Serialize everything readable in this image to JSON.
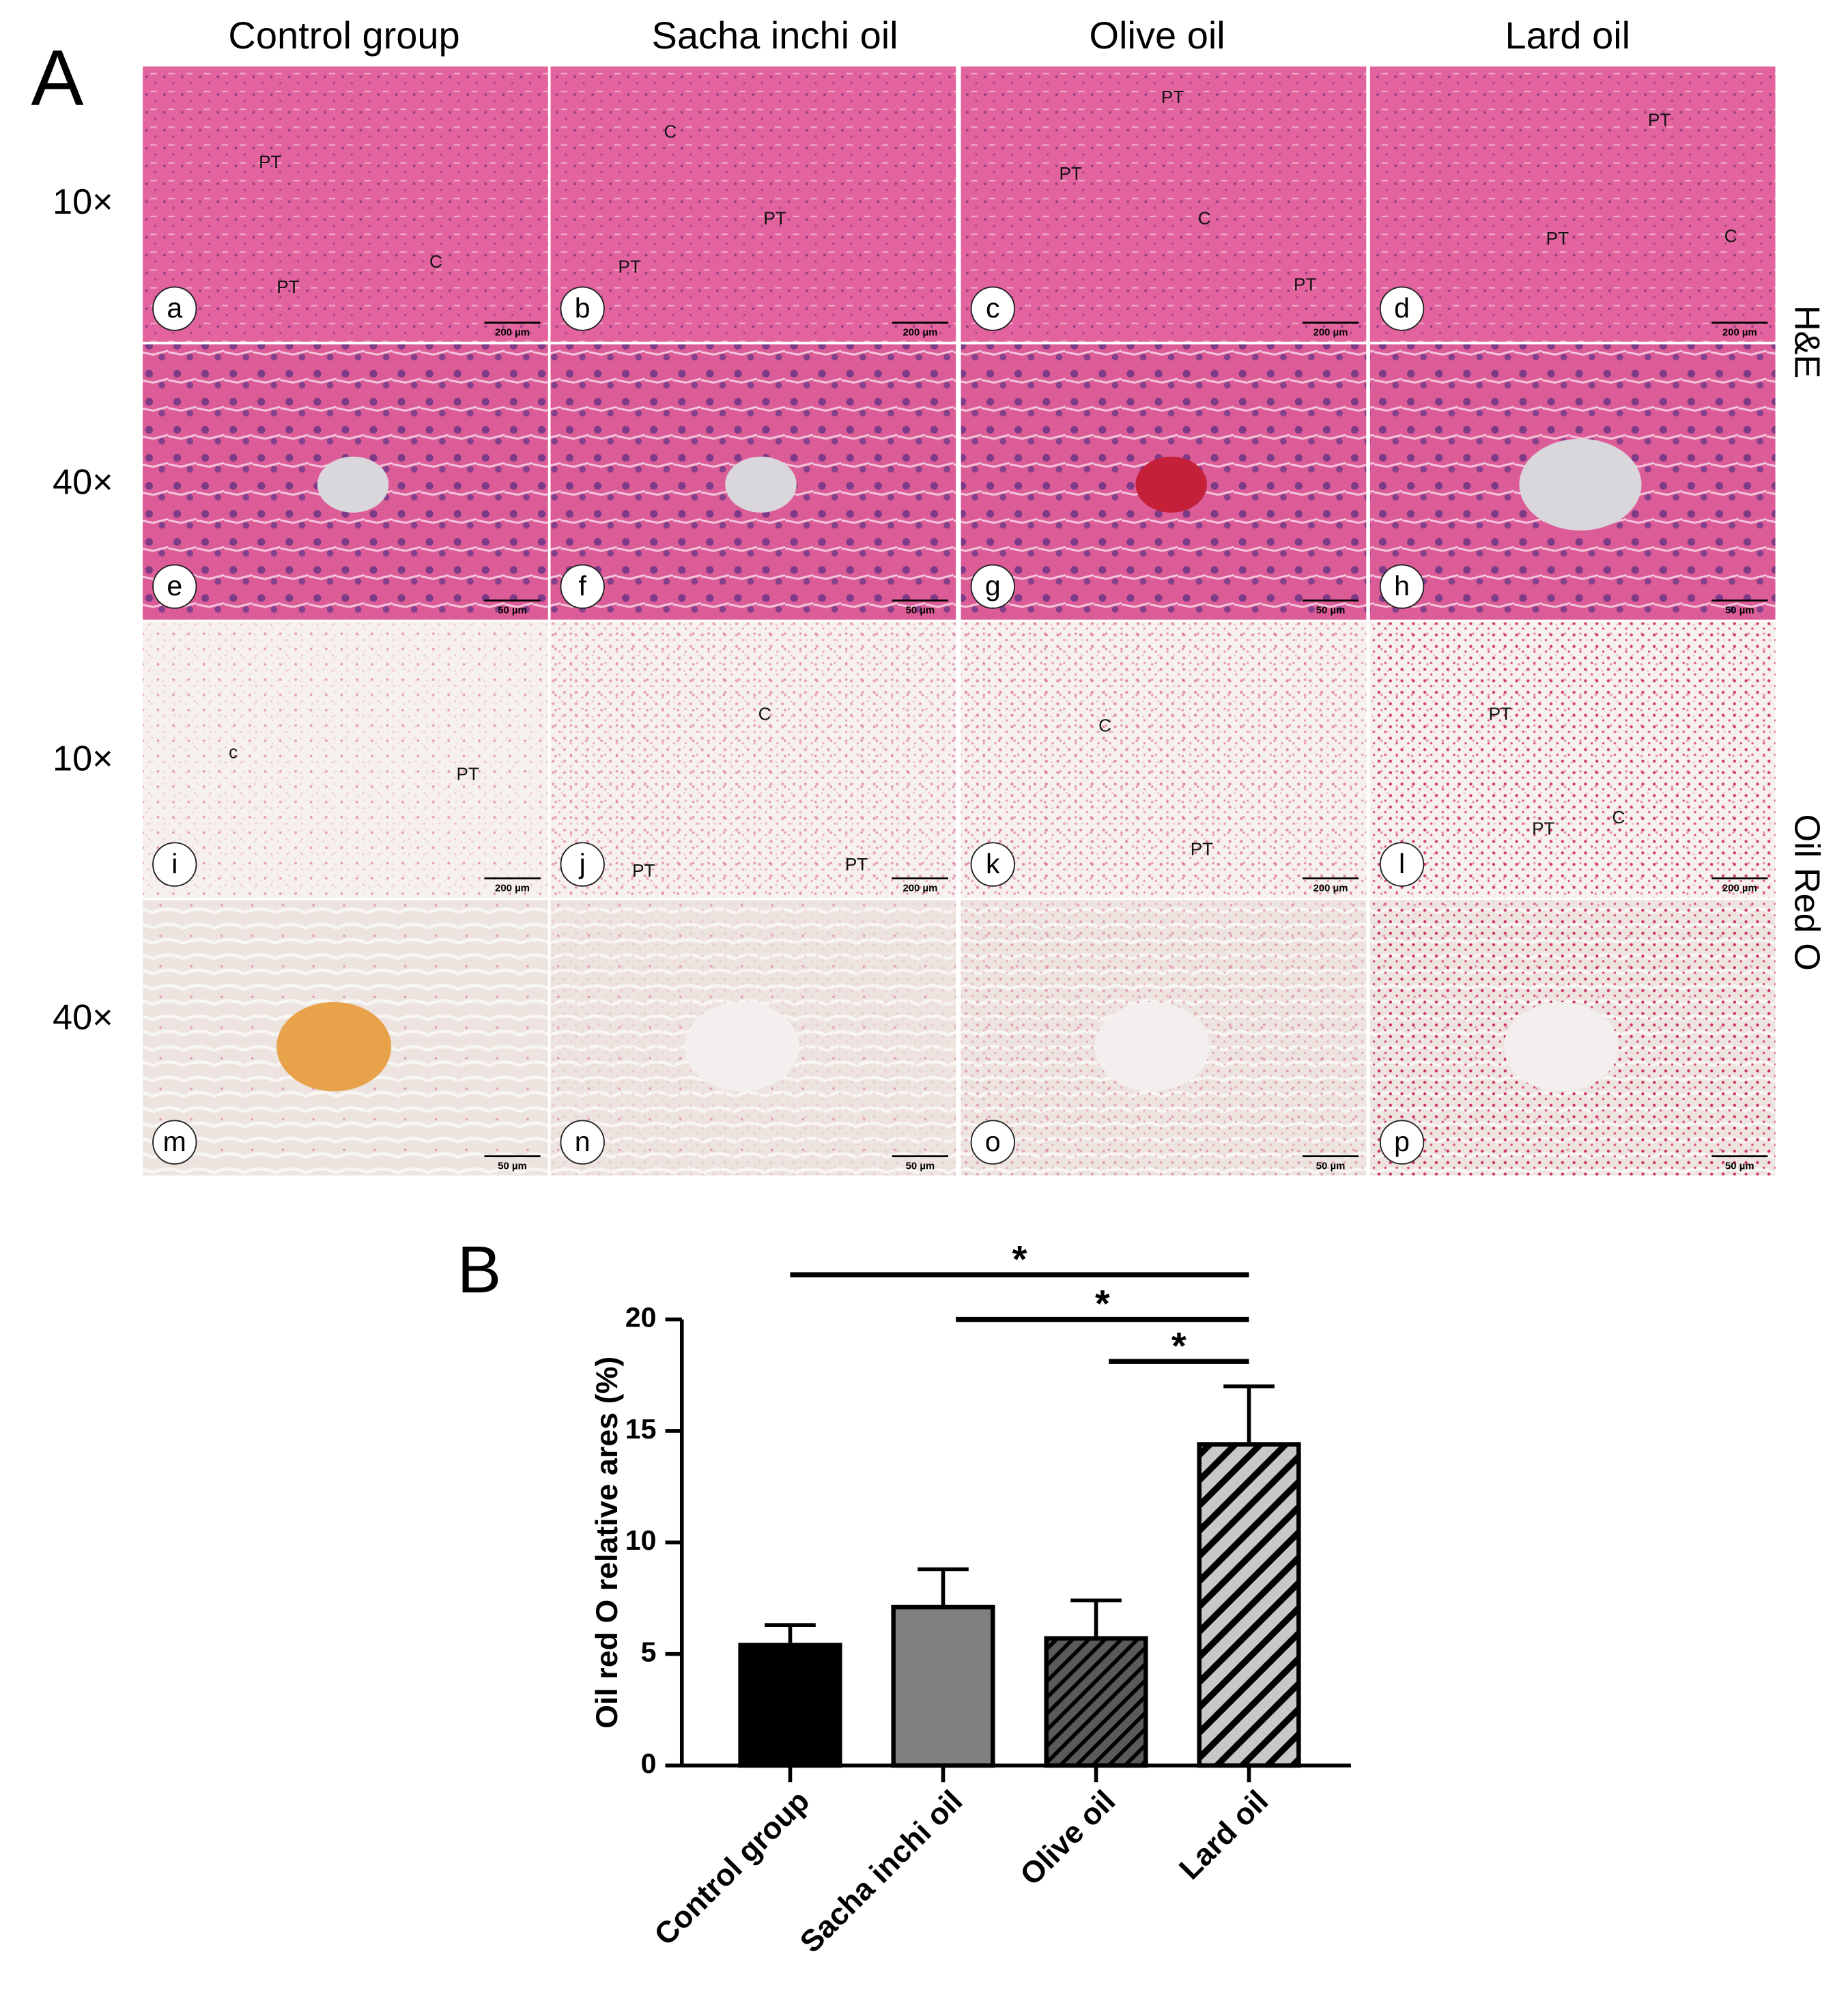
{
  "panel_a": {
    "label": "A",
    "columns": [
      "Control group",
      "Sacha inchi oil",
      "Olive oil",
      "Lard oil"
    ],
    "row_labels": [
      "10×",
      "40×",
      "10×",
      "40×"
    ],
    "stain_labels": [
      "H&E",
      "Oil Red O"
    ],
    "panels": [
      {
        "letter": "a",
        "scale_bar": "200 µm",
        "annotations": [
          "PT",
          "PT",
          "C"
        ]
      },
      {
        "letter": "b",
        "scale_bar": "200 µm",
        "annotations": [
          "C",
          "PT",
          "PT"
        ]
      },
      {
        "letter": "c",
        "scale_bar": "200 µm",
        "annotations": [
          "PT",
          "PT",
          "C",
          "PT"
        ]
      },
      {
        "letter": "d",
        "scale_bar": "200 µm",
        "annotations": [
          "PT",
          "C",
          "PT"
        ]
      },
      {
        "letter": "e",
        "scale_bar": "50 µm",
        "annotations": []
      },
      {
        "letter": "f",
        "scale_bar": "50 µm",
        "annotations": []
      },
      {
        "letter": "g",
        "scale_bar": "50 µm",
        "annotations": []
      },
      {
        "letter": "h",
        "scale_bar": "50 µm",
        "annotations": []
      },
      {
        "letter": "i",
        "scale_bar": "200 µm",
        "annotations": [
          "c",
          "PT"
        ]
      },
      {
        "letter": "j",
        "scale_bar": "200 µm",
        "annotations": [
          "C",
          "PT",
          "PT"
        ]
      },
      {
        "letter": "k",
        "scale_bar": "200 µm",
        "annotations": [
          "C",
          "PT"
        ]
      },
      {
        "letter": "l",
        "scale_bar": "200 µm",
        "annotations": [
          "PT",
          "PT",
          "C"
        ]
      },
      {
        "letter": "m",
        "scale_bar": "50 µm",
        "annotations": []
      },
      {
        "letter": "n",
        "scale_bar": "50 µm",
        "annotations": []
      },
      {
        "letter": "o",
        "scale_bar": "50 µm",
        "annotations": []
      },
      {
        "letter": "p",
        "scale_bar": "50 µm",
        "annotations": []
      }
    ]
  },
  "chart_data": {
    "type": "bar",
    "panel_label": "B",
    "y_label": "Oil red O relative ares (%)",
    "categories": [
      "Control group",
      "Sacha inchi oil",
      "Olive oil",
      "Lard oil"
    ],
    "values": [
      5.4,
      7.1,
      5.7,
      14.4
    ],
    "errors": [
      0.9,
      1.7,
      1.7,
      2.6
    ],
    "colors": [
      "#000000",
      "#808080",
      "#4d4d4d",
      "#c8c8c8"
    ],
    "hatch": [
      false,
      false,
      true,
      true
    ],
    "ylim": [
      0,
      20
    ],
    "yticks": [
      0,
      5,
      10,
      15,
      20
    ],
    "comparisons": [
      {
        "from": 0,
        "to": 3,
        "label": "*"
      },
      {
        "from": 1,
        "to": 3,
        "label": "*"
      },
      {
        "from": 2,
        "to": 3,
        "label": "*"
      }
    ]
  }
}
